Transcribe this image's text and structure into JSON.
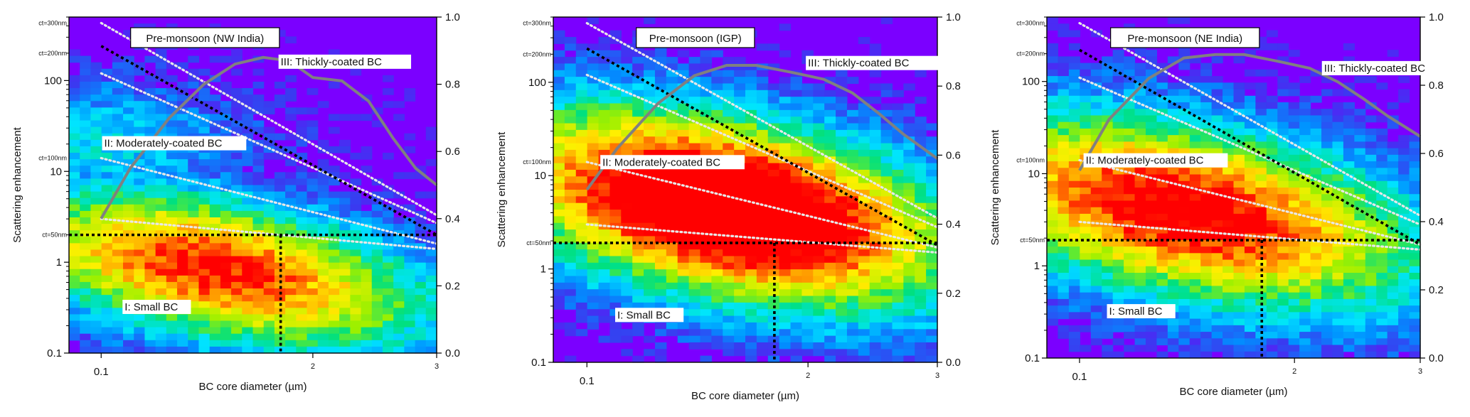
{
  "figure": {
    "colors": {
      "background": "#7B00FF",
      "curve": "#808080",
      "dotted_black": "#000000",
      "dotted_white": "#E8E8E8",
      "colormap": [
        "#7B00FF",
        "#3A3AF0",
        "#0090FF",
        "#00E5FF",
        "#00E080",
        "#9BF000",
        "#FFF000",
        "#FF9000",
        "#FF0000"
      ]
    }
  },
  "chart_data": [
    {
      "type": "heatmap",
      "title": "Pre-monsoon (NW India)",
      "xlabel": "BC core diameter (µm)",
      "ylabel": "Scattering enhancement",
      "x_scale": "log",
      "y_scale": "log",
      "xlim": [
        0.09,
        0.3
      ],
      "ylim": [
        0.1,
        500
      ],
      "x_ticks": [
        {
          "v": 0.1,
          "label": "0.1"
        },
        {
          "v": 0.2,
          "label": "2"
        },
        {
          "v": 0.3,
          "label": "3"
        }
      ],
      "y_ticks": [
        {
          "v": 0.1,
          "label": "0.1"
        },
        {
          "v": 1,
          "label": "1"
        },
        {
          "v": 10,
          "label": "10"
        },
        {
          "v": 100,
          "label": "100"
        }
      ],
      "y2_ticks": [
        "0.0",
        "0.2",
        "0.4",
        "0.6",
        "0.8",
        "1.0"
      ],
      "y2lim": [
        0,
        1
      ],
      "ct_labels": [
        {
          "y": 2.0,
          "label": "ct=50nm"
        },
        {
          "y": 14,
          "label": "ct=100nm"
        },
        {
          "y": 200,
          "label": "ct=200nm"
        },
        {
          "y": 430,
          "label": "ct=300nm"
        }
      ],
      "region_labels": [
        {
          "text": "III: Thickly-coated BC",
          "x": 0.18,
          "y": 150
        },
        {
          "text": "II: Moderately-coated BC",
          "x": 0.101,
          "y": 19
        },
        {
          "text": "I: Small BC",
          "x": 0.108,
          "y": 0.3
        }
      ],
      "density": {
        "peak_x": 0.145,
        "peak_y": 0.85,
        "peak_intensity": 8.0,
        "spread_x": 0.55,
        "spread_y": 0.95,
        "tail_strength": 0.55
      },
      "fraction_curve": [
        {
          "x": 0.1,
          "y": 0.4
        },
        {
          "x": 0.11,
          "y": 0.55
        },
        {
          "x": 0.125,
          "y": 0.7
        },
        {
          "x": 0.14,
          "y": 0.8
        },
        {
          "x": 0.155,
          "y": 0.86
        },
        {
          "x": 0.17,
          "y": 0.88
        },
        {
          "x": 0.185,
          "y": 0.87
        },
        {
          "x": 0.2,
          "y": 0.82
        },
        {
          "x": 0.22,
          "y": 0.81
        },
        {
          "x": 0.24,
          "y": 0.75
        },
        {
          "x": 0.26,
          "y": 0.64
        },
        {
          "x": 0.28,
          "y": 0.55
        },
        {
          "x": 0.3,
          "y": 0.5
        }
      ],
      "threshold_horizontal": {
        "y": 2.0,
        "x_end": 0.3
      },
      "threshold_vertical": {
        "x": 0.18,
        "y_top": 2.0
      },
      "black_diagonal": [
        {
          "x": 0.1,
          "y": 240
        },
        {
          "x": 0.3,
          "y": 2.0
        }
      ],
      "white_lines": [
        [
          {
            "x": 0.1,
            "y": 430
          },
          {
            "x": 0.3,
            "y": 3.3
          }
        ],
        [
          {
            "x": 0.1,
            "y": 120
          },
          {
            "x": 0.3,
            "y": 2.7
          }
        ],
        [
          {
            "x": 0.1,
            "y": 14
          },
          {
            "x": 0.3,
            "y": 1.6
          }
        ],
        [
          {
            "x": 0.1,
            "y": 3.0
          },
          {
            "x": 0.3,
            "y": 1.4
          }
        ]
      ]
    },
    {
      "type": "heatmap",
      "title": "Pre-monsoon (IGP)",
      "xlabel": "BC core diameter (µm)",
      "ylabel": "Scattering enhancement",
      "x_scale": "log",
      "y_scale": "log",
      "xlim": [
        0.09,
        0.3
      ],
      "ylim": [
        0.1,
        500
      ],
      "x_ticks": [
        {
          "v": 0.1,
          "label": "0.1"
        },
        {
          "v": 0.2,
          "label": "2"
        },
        {
          "v": 0.3,
          "label": "3"
        }
      ],
      "y_ticks": [
        {
          "v": 0.1,
          "label": "0.1"
        },
        {
          "v": 1,
          "label": "1"
        },
        {
          "v": 10,
          "label": "10"
        },
        {
          "v": 100,
          "label": "100"
        }
      ],
      "y2_ticks": [
        "0.0",
        "0.2",
        "0.4",
        "0.6",
        "0.8",
        "1.0"
      ],
      "y2lim": [
        0,
        1
      ],
      "ct_labels": [
        {
          "y": 1.9,
          "label": "ct=50nm"
        },
        {
          "y": 14,
          "label": "ct=100nm"
        },
        {
          "y": 200,
          "label": "ct=200nm"
        },
        {
          "y": 430,
          "label": "ct=300nm"
        }
      ],
      "region_labels": [
        {
          "text": "III: Thickly-coated BC",
          "x": 0.2,
          "y": 150
        },
        {
          "text": "II: Moderately-coated BC",
          "x": 0.105,
          "y": 13
        },
        {
          "text": "I: Small BC",
          "x": 0.11,
          "y": 0.3
        }
      ],
      "density": {
        "peak_x": 0.155,
        "peak_y": 4.5,
        "peak_intensity": 10.5,
        "spread_x": 0.55,
        "spread_y": 1.15,
        "tail_strength": 0.85
      },
      "fraction_curve": [
        {
          "x": 0.1,
          "y": 0.5
        },
        {
          "x": 0.11,
          "y": 0.62
        },
        {
          "x": 0.125,
          "y": 0.75
        },
        {
          "x": 0.14,
          "y": 0.83
        },
        {
          "x": 0.155,
          "y": 0.86
        },
        {
          "x": 0.17,
          "y": 0.86
        },
        {
          "x": 0.19,
          "y": 0.84
        },
        {
          "x": 0.21,
          "y": 0.82
        },
        {
          "x": 0.23,
          "y": 0.78
        },
        {
          "x": 0.25,
          "y": 0.72
        },
        {
          "x": 0.27,
          "y": 0.66
        },
        {
          "x": 0.3,
          "y": 0.59
        }
      ],
      "threshold_horizontal": {
        "y": 1.9,
        "x_end": 0.3
      },
      "threshold_vertical": {
        "x": 0.18,
        "y_top": 1.9
      },
      "black_diagonal": [
        {
          "x": 0.1,
          "y": 230
        },
        {
          "x": 0.3,
          "y": 1.8
        }
      ],
      "white_lines": [
        [
          {
            "x": 0.1,
            "y": 430
          },
          {
            "x": 0.3,
            "y": 3.5
          }
        ],
        [
          {
            "x": 0.1,
            "y": 120
          },
          {
            "x": 0.3,
            "y": 2.8
          }
        ],
        [
          {
            "x": 0.1,
            "y": 14
          },
          {
            "x": 0.3,
            "y": 1.7
          }
        ],
        [
          {
            "x": 0.1,
            "y": 3.0
          },
          {
            "x": 0.3,
            "y": 1.5
          }
        ]
      ]
    },
    {
      "type": "heatmap",
      "title": "Pre-monsoon (NE India)",
      "xlabel": "BC core diameter (µm)",
      "ylabel": "Scattering enhancement",
      "x_scale": "log",
      "y_scale": "log",
      "xlim": [
        0.09,
        0.3
      ],
      "ylim": [
        0.1,
        500
      ],
      "x_ticks": [
        {
          "v": 0.1,
          "label": "0.1"
        },
        {
          "v": 0.2,
          "label": "2"
        },
        {
          "v": 0.3,
          "label": "3"
        }
      ],
      "y_ticks": [
        {
          "v": 0.1,
          "label": "0.1"
        },
        {
          "v": 1,
          "label": "1"
        },
        {
          "v": 10,
          "label": "10"
        },
        {
          "v": 100,
          "label": "100"
        }
      ],
      "y2_ticks": [
        "0.0",
        "0.2",
        "0.4",
        "0.6",
        "0.8",
        "1.0"
      ],
      "y2lim": [
        0,
        1
      ],
      "ct_labels": [
        {
          "y": 1.9,
          "label": "ct=50nm"
        },
        {
          "y": 14,
          "label": "ct=100nm"
        },
        {
          "y": 200,
          "label": "ct=200nm"
        },
        {
          "y": 430,
          "label": "ct=300nm"
        }
      ],
      "region_labels": [
        {
          "text": "III: Thickly-coated BC",
          "x": 0.22,
          "y": 130
        },
        {
          "text": "II: Moderately-coated BC",
          "x": 0.102,
          "y": 13
        },
        {
          "text": "I: Small BC",
          "x": 0.11,
          "y": 0.3
        }
      ],
      "density": {
        "peak_x": 0.14,
        "peak_y": 4.0,
        "peak_intensity": 8.6,
        "spread_x": 0.6,
        "spread_y": 1.15,
        "tail_strength": 0.75
      },
      "fraction_curve": [
        {
          "x": 0.1,
          "y": 0.55
        },
        {
          "x": 0.11,
          "y": 0.7
        },
        {
          "x": 0.125,
          "y": 0.82
        },
        {
          "x": 0.14,
          "y": 0.88
        },
        {
          "x": 0.155,
          "y": 0.89
        },
        {
          "x": 0.17,
          "y": 0.89
        },
        {
          "x": 0.19,
          "y": 0.87
        },
        {
          "x": 0.21,
          "y": 0.85
        },
        {
          "x": 0.23,
          "y": 0.81
        },
        {
          "x": 0.25,
          "y": 0.76
        },
        {
          "x": 0.27,
          "y": 0.71
        },
        {
          "x": 0.3,
          "y": 0.65
        }
      ],
      "threshold_horizontal": {
        "y": 1.9,
        "x_end": 0.3
      },
      "threshold_vertical": {
        "x": 0.18,
        "y_top": 1.9
      },
      "black_diagonal": [
        {
          "x": 0.1,
          "y": 220
        },
        {
          "x": 0.3,
          "y": 1.7
        }
      ],
      "white_lines": [
        [
          {
            "x": 0.1,
            "y": 430
          },
          {
            "x": 0.3,
            "y": 3.5
          }
        ],
        [
          {
            "x": 0.1,
            "y": 110
          },
          {
            "x": 0.3,
            "y": 2.8
          }
        ],
        [
          {
            "x": 0.1,
            "y": 14
          },
          {
            "x": 0.3,
            "y": 1.7
          }
        ],
        [
          {
            "x": 0.1,
            "y": 3.0
          },
          {
            "x": 0.3,
            "y": 1.5
          }
        ]
      ]
    }
  ]
}
